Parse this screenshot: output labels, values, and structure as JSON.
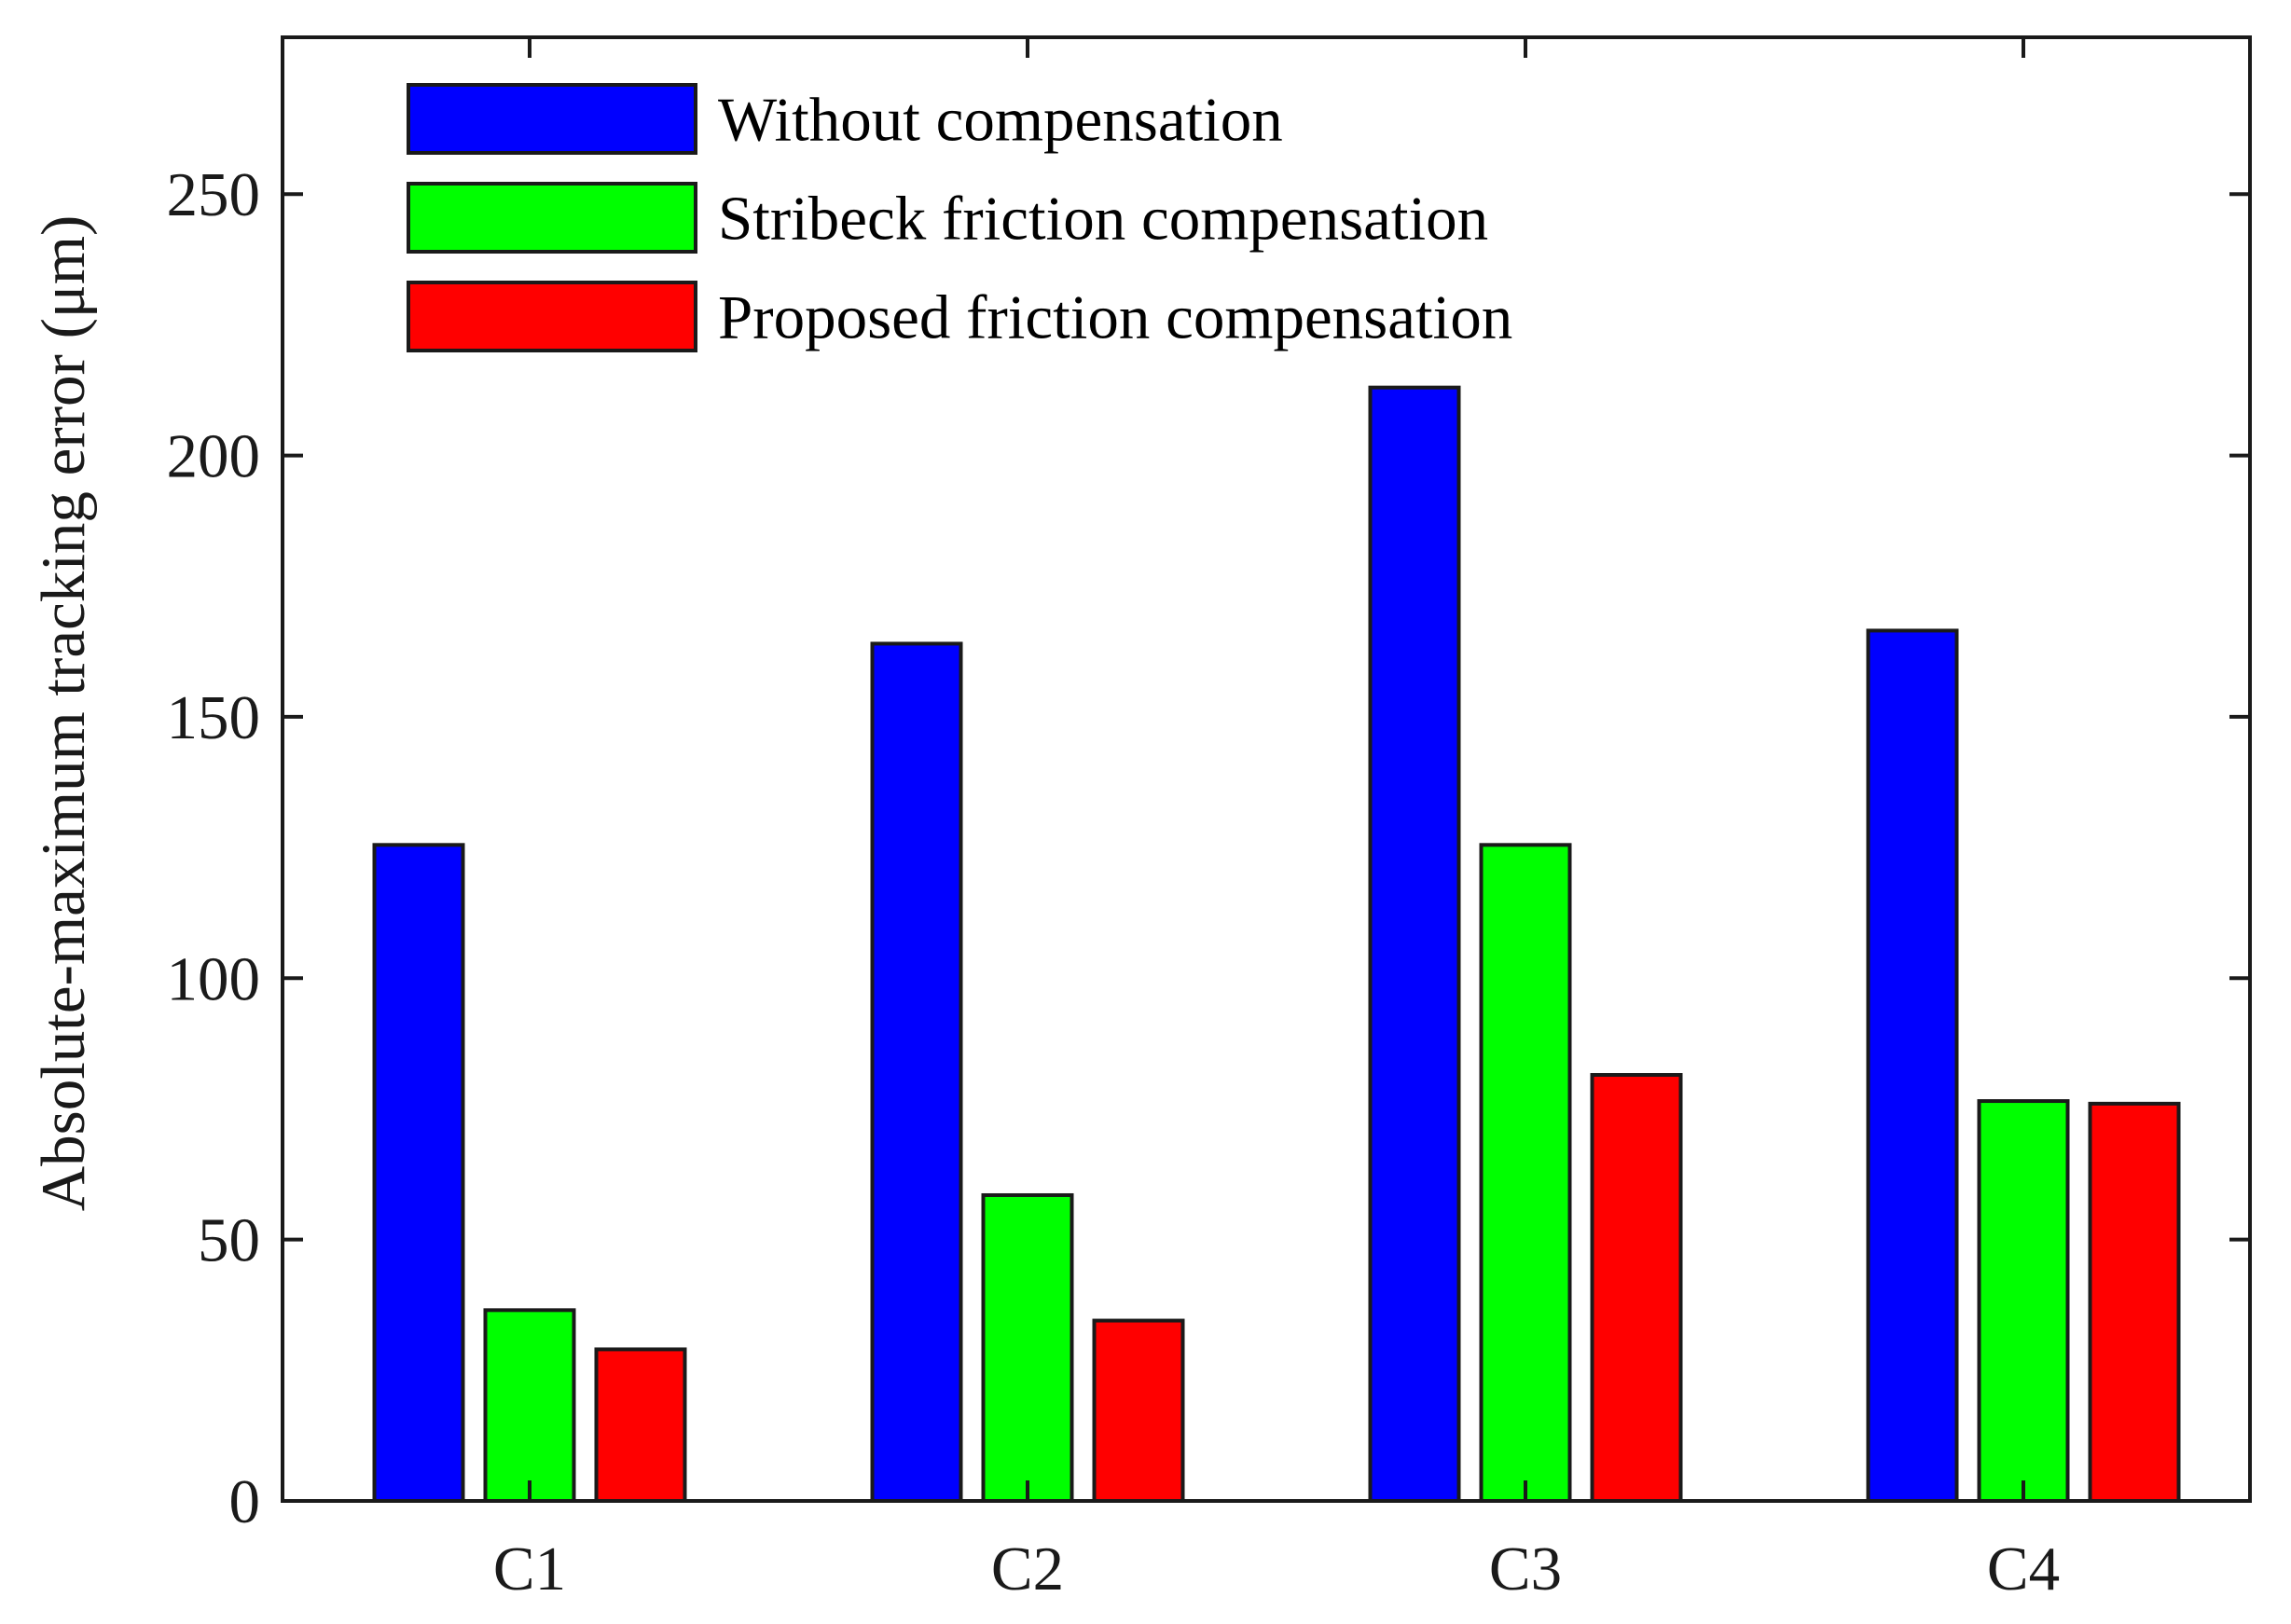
{
  "chart_data": {
    "type": "bar",
    "title": "",
    "xlabel": "",
    "ylabel": "Absolute-maximum tracking error (μm)",
    "categories": [
      "C1",
      "C2",
      "C3",
      "C4"
    ],
    "ylim": [
      0,
      280
    ],
    "yticks": [
      0,
      50,
      100,
      150,
      200,
      250
    ],
    "grid": false,
    "legend_position": "top-left",
    "series": [
      {
        "name": "Without compensation",
        "color": "#0000ff",
        "values": [
          125.5,
          164,
          213,
          166.5
        ]
      },
      {
        "name": "Stribeck friction compensation",
        "color": "#00ff00",
        "values": [
          36.5,
          58.5,
          125.5,
          76.5
        ]
      },
      {
        "name": "Proposed friction compensation",
        "color": "#ff0000",
        "values": [
          29,
          34.5,
          81.5,
          76
        ]
      }
    ]
  }
}
